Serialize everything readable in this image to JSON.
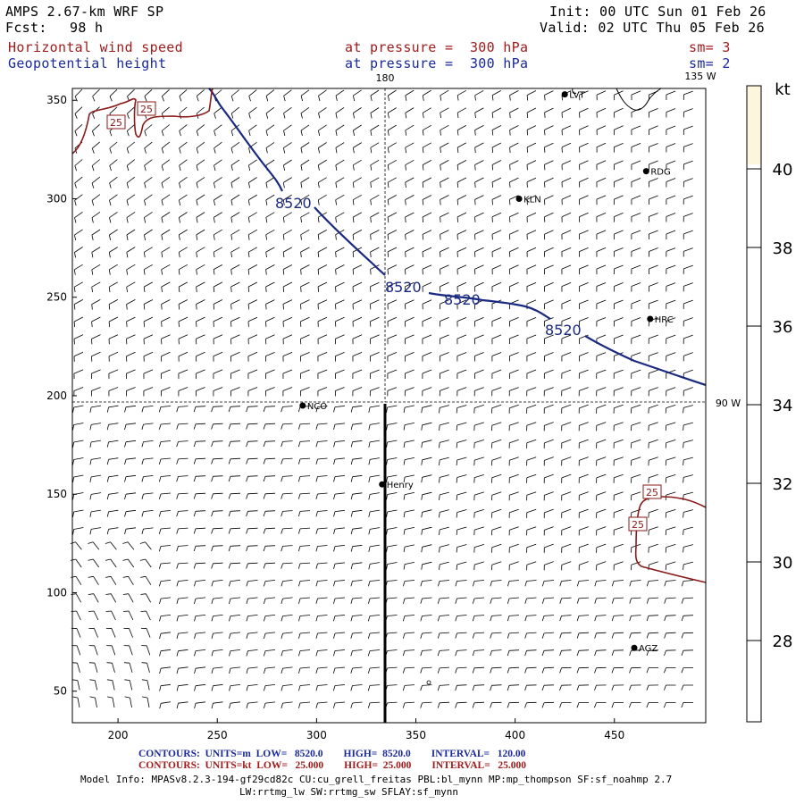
{
  "header": {
    "title": "AMPS 2.67-km WRF SP",
    "forecast_label": "Fcst:",
    "forecast_hours": "98 h",
    "init": "Init: 00 UTC Sun 01 Feb 26",
    "valid": "Valid: 02 UTC Thu 05 Feb 26",
    "field1_name": "Horizontal wind speed",
    "field1_level": "at pressure =  300 hPa",
    "field1_sm": "sm= 3",
    "field2_name": "Geopotential height",
    "field2_level": "at pressure =  300 hPa",
    "field2_sm": "sm= 2"
  },
  "map": {
    "lon_labels": {
      "top_180": "180",
      "top_135w": "135 W",
      "right_90w": "90 W"
    },
    "x_ticks": [
      200,
      250,
      300,
      350,
      400,
      450
    ],
    "y_ticks": [
      50,
      100,
      150,
      200,
      250,
      300,
      350
    ],
    "x_range": [
      177,
      496
    ],
    "y_range": [
      34,
      356
    ],
    "stations": [
      {
        "name": "LVT",
        "x": 425,
        "y": 353
      },
      {
        "name": "RDG",
        "x": 466,
        "y": 314
      },
      {
        "name": "KLN",
        "x": 402,
        "y": 300
      },
      {
        "name": "HRC",
        "x": 468,
        "y": 239
      },
      {
        "name": "NCO",
        "x": 293,
        "y": 195
      },
      {
        "name": "Henry",
        "x": 333,
        "y": 155
      },
      {
        "name": "AGZ",
        "x": 460,
        "y": 72
      }
    ],
    "height_contour_value": "8520",
    "speed_contour_value": "25",
    "colors": {
      "height": "#1a2a80",
      "speed": "#8b1a1a",
      "colorbar_top": "#fbf6dc",
      "wind_barb": "#000000"
    }
  },
  "colorbar": {
    "unit": "kt",
    "levels": [
      "28",
      "30",
      "32",
      "34",
      "36",
      "38",
      "40"
    ]
  },
  "footer": {
    "line1": "CONTOURS:  UNITS=m  LOW=   8520.0        HIGH=  8520.0        INTERVAL=   120.00",
    "line2": "CONTOURS:  UNITS=kt  LOW=   25.000        HIGH=  25.000        INTERVAL=   25.000",
    "model_info": "Model Info: MPASv8.2.3-194-gf29cd82c CU:cu_grell_freitas PBL:bl_mynn MP:mp_thompson SF:sf_noahmp 2.7",
    "model_info2": "LW:rrtmg_lw SW:rrtmg_sw SFLAY:sf_mynn"
  }
}
